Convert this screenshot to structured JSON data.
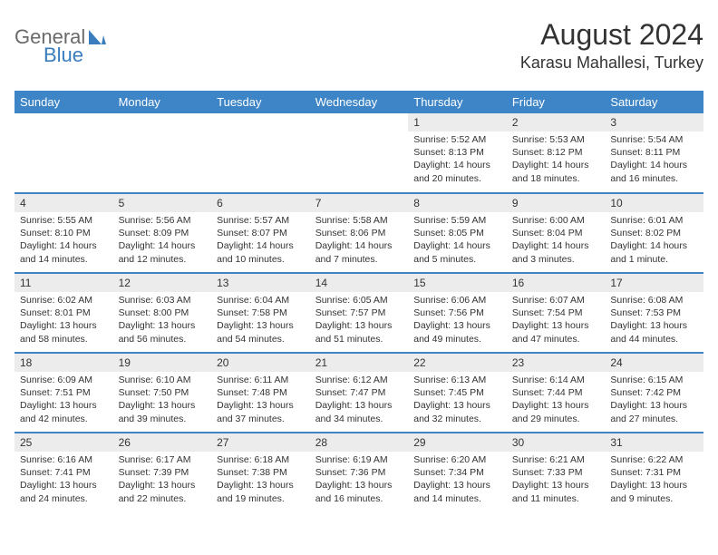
{
  "logo": {
    "part1": "General",
    "part2": "Blue"
  },
  "title": "August 2024",
  "location": "Karasu Mahallesi, Turkey",
  "colors": {
    "header_bg": "#3d85c6",
    "header_text": "#ffffff",
    "daynum_bg": "#ececec",
    "border": "#3d85c6",
    "logo_gray": "#6a6a6a",
    "logo_blue": "#3a7dbf"
  },
  "weekdays": [
    "Sunday",
    "Monday",
    "Tuesday",
    "Wednesday",
    "Thursday",
    "Friday",
    "Saturday"
  ],
  "weeks": [
    [
      null,
      null,
      null,
      null,
      {
        "n": "1",
        "sr": "Sunrise: 5:52 AM",
        "ss": "Sunset: 8:13 PM",
        "d1": "Daylight: 14 hours",
        "d2": "and 20 minutes."
      },
      {
        "n": "2",
        "sr": "Sunrise: 5:53 AM",
        "ss": "Sunset: 8:12 PM",
        "d1": "Daylight: 14 hours",
        "d2": "and 18 minutes."
      },
      {
        "n": "3",
        "sr": "Sunrise: 5:54 AM",
        "ss": "Sunset: 8:11 PM",
        "d1": "Daylight: 14 hours",
        "d2": "and 16 minutes."
      }
    ],
    [
      {
        "n": "4",
        "sr": "Sunrise: 5:55 AM",
        "ss": "Sunset: 8:10 PM",
        "d1": "Daylight: 14 hours",
        "d2": "and 14 minutes."
      },
      {
        "n": "5",
        "sr": "Sunrise: 5:56 AM",
        "ss": "Sunset: 8:09 PM",
        "d1": "Daylight: 14 hours",
        "d2": "and 12 minutes."
      },
      {
        "n": "6",
        "sr": "Sunrise: 5:57 AM",
        "ss": "Sunset: 8:07 PM",
        "d1": "Daylight: 14 hours",
        "d2": "and 10 minutes."
      },
      {
        "n": "7",
        "sr": "Sunrise: 5:58 AM",
        "ss": "Sunset: 8:06 PM",
        "d1": "Daylight: 14 hours",
        "d2": "and 7 minutes."
      },
      {
        "n": "8",
        "sr": "Sunrise: 5:59 AM",
        "ss": "Sunset: 8:05 PM",
        "d1": "Daylight: 14 hours",
        "d2": "and 5 minutes."
      },
      {
        "n": "9",
        "sr": "Sunrise: 6:00 AM",
        "ss": "Sunset: 8:04 PM",
        "d1": "Daylight: 14 hours",
        "d2": "and 3 minutes."
      },
      {
        "n": "10",
        "sr": "Sunrise: 6:01 AM",
        "ss": "Sunset: 8:02 PM",
        "d1": "Daylight: 14 hours",
        "d2": "and 1 minute."
      }
    ],
    [
      {
        "n": "11",
        "sr": "Sunrise: 6:02 AM",
        "ss": "Sunset: 8:01 PM",
        "d1": "Daylight: 13 hours",
        "d2": "and 58 minutes."
      },
      {
        "n": "12",
        "sr": "Sunrise: 6:03 AM",
        "ss": "Sunset: 8:00 PM",
        "d1": "Daylight: 13 hours",
        "d2": "and 56 minutes."
      },
      {
        "n": "13",
        "sr": "Sunrise: 6:04 AM",
        "ss": "Sunset: 7:58 PM",
        "d1": "Daylight: 13 hours",
        "d2": "and 54 minutes."
      },
      {
        "n": "14",
        "sr": "Sunrise: 6:05 AM",
        "ss": "Sunset: 7:57 PM",
        "d1": "Daylight: 13 hours",
        "d2": "and 51 minutes."
      },
      {
        "n": "15",
        "sr": "Sunrise: 6:06 AM",
        "ss": "Sunset: 7:56 PM",
        "d1": "Daylight: 13 hours",
        "d2": "and 49 minutes."
      },
      {
        "n": "16",
        "sr": "Sunrise: 6:07 AM",
        "ss": "Sunset: 7:54 PM",
        "d1": "Daylight: 13 hours",
        "d2": "and 47 minutes."
      },
      {
        "n": "17",
        "sr": "Sunrise: 6:08 AM",
        "ss": "Sunset: 7:53 PM",
        "d1": "Daylight: 13 hours",
        "d2": "and 44 minutes."
      }
    ],
    [
      {
        "n": "18",
        "sr": "Sunrise: 6:09 AM",
        "ss": "Sunset: 7:51 PM",
        "d1": "Daylight: 13 hours",
        "d2": "and 42 minutes."
      },
      {
        "n": "19",
        "sr": "Sunrise: 6:10 AM",
        "ss": "Sunset: 7:50 PM",
        "d1": "Daylight: 13 hours",
        "d2": "and 39 minutes."
      },
      {
        "n": "20",
        "sr": "Sunrise: 6:11 AM",
        "ss": "Sunset: 7:48 PM",
        "d1": "Daylight: 13 hours",
        "d2": "and 37 minutes."
      },
      {
        "n": "21",
        "sr": "Sunrise: 6:12 AM",
        "ss": "Sunset: 7:47 PM",
        "d1": "Daylight: 13 hours",
        "d2": "and 34 minutes."
      },
      {
        "n": "22",
        "sr": "Sunrise: 6:13 AM",
        "ss": "Sunset: 7:45 PM",
        "d1": "Daylight: 13 hours",
        "d2": "and 32 minutes."
      },
      {
        "n": "23",
        "sr": "Sunrise: 6:14 AM",
        "ss": "Sunset: 7:44 PM",
        "d1": "Daylight: 13 hours",
        "d2": "and 29 minutes."
      },
      {
        "n": "24",
        "sr": "Sunrise: 6:15 AM",
        "ss": "Sunset: 7:42 PM",
        "d1": "Daylight: 13 hours",
        "d2": "and 27 minutes."
      }
    ],
    [
      {
        "n": "25",
        "sr": "Sunrise: 6:16 AM",
        "ss": "Sunset: 7:41 PM",
        "d1": "Daylight: 13 hours",
        "d2": "and 24 minutes."
      },
      {
        "n": "26",
        "sr": "Sunrise: 6:17 AM",
        "ss": "Sunset: 7:39 PM",
        "d1": "Daylight: 13 hours",
        "d2": "and 22 minutes."
      },
      {
        "n": "27",
        "sr": "Sunrise: 6:18 AM",
        "ss": "Sunset: 7:38 PM",
        "d1": "Daylight: 13 hours",
        "d2": "and 19 minutes."
      },
      {
        "n": "28",
        "sr": "Sunrise: 6:19 AM",
        "ss": "Sunset: 7:36 PM",
        "d1": "Daylight: 13 hours",
        "d2": "and 16 minutes."
      },
      {
        "n": "29",
        "sr": "Sunrise: 6:20 AM",
        "ss": "Sunset: 7:34 PM",
        "d1": "Daylight: 13 hours",
        "d2": "and 14 minutes."
      },
      {
        "n": "30",
        "sr": "Sunrise: 6:21 AM",
        "ss": "Sunset: 7:33 PM",
        "d1": "Daylight: 13 hours",
        "d2": "and 11 minutes."
      },
      {
        "n": "31",
        "sr": "Sunrise: 6:22 AM",
        "ss": "Sunset: 7:31 PM",
        "d1": "Daylight: 13 hours",
        "d2": "and 9 minutes."
      }
    ]
  ]
}
